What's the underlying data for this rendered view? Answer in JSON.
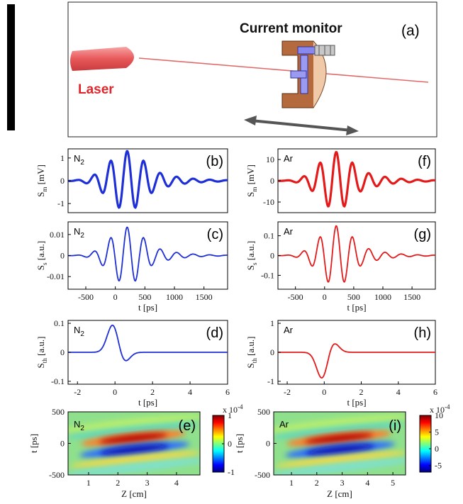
{
  "panel_a": {
    "label": "(a)",
    "current_monitor": "Current monitor",
    "laser": "Laser"
  },
  "chart_data": [
    {
      "id": "b",
      "type": "line",
      "panel_label": "(b)",
      "annotation": "N",
      "annotation_sub": "2",
      "ylabel_main": "S",
      "ylabel_sub": "m",
      "ylabel_unit": "[mV]",
      "color": "#1f2fd8",
      "marker": "circle",
      "xlim": [
        -800,
        1900
      ],
      "ylim": [
        -1.4,
        1.4
      ],
      "xticks": [],
      "yticks": [
        1,
        0,
        -1
      ],
      "wave": {
        "center": 200,
        "amp": 1.3,
        "sigma": 130,
        "period": 280,
        "decay": 420,
        "polarity": 1
      }
    },
    {
      "id": "c",
      "type": "line",
      "panel_label": "(c)",
      "annotation": "N",
      "annotation_sub": "2",
      "ylabel_main": "S",
      "ylabel_sub": "s",
      "ylabel_unit": "[a.u.]",
      "color": "#1f2fd8",
      "marker": "none",
      "xlim": [
        -800,
        1900
      ],
      "ylim": [
        -0.016,
        0.016
      ],
      "xticks": [
        -500,
        0,
        500,
        1000,
        1500
      ],
      "yticks": [
        0.01,
        0,
        -0.01
      ],
      "xlabel": "t [ps]",
      "wave": {
        "center": 200,
        "amp": 0.0135,
        "sigma": 120,
        "period": 280,
        "decay": 380,
        "polarity": 1
      }
    },
    {
      "id": "d",
      "type": "line",
      "panel_label": "(d)",
      "annotation": "N",
      "annotation_sub": "2",
      "ylabel_main": "S",
      "ylabel_sub": "th",
      "ylabel_unit": "[a.u.]",
      "color": "#1f2fd8",
      "marker": "none",
      "xlim": [
        -2.5,
        6
      ],
      "ylim": [
        -0.11,
        0.11
      ],
      "xticks": [
        -2,
        0,
        2,
        4,
        6
      ],
      "yticks": [
        0.1,
        0,
        -0.1
      ],
      "xlabel": "t [ps]",
      "pulse": {
        "pos_amp": 0.1,
        "pos_center": -0.1,
        "pos_sigma": 0.3,
        "neg_amp": -0.04,
        "neg_center": 0.45,
        "neg_sigma": 0.3
      }
    },
    {
      "id": "f",
      "type": "line",
      "panel_label": "(f)",
      "annotation": "Ar",
      "annotation_sub": "",
      "ylabel_main": "S",
      "ylabel_sub": "m",
      "ylabel_unit": "[mV]",
      "color": "#e41a1a",
      "marker": "circle",
      "xlim": [
        -800,
        1900
      ],
      "ylim": [
        -15,
        15
      ],
      "xticks": [],
      "yticks": [
        10,
        0,
        -10
      ],
      "wave": {
        "center": 200,
        "amp": 13.5,
        "sigma": 120,
        "period": 280,
        "decay": 420,
        "polarity": 1
      }
    },
    {
      "id": "g",
      "type": "line",
      "panel_label": "(g)",
      "annotation": "Ar",
      "annotation_sub": "",
      "ylabel_main": "S",
      "ylabel_sub": "s",
      "ylabel_unit": "[a.u.]",
      "color": "#e41a1a",
      "marker": "none",
      "xlim": [
        -800,
        1900
      ],
      "ylim": [
        -0.17,
        0.17
      ],
      "xticks": [
        -500,
        0,
        500,
        1000,
        1500
      ],
      "yticks": [
        0.1,
        0,
        -0.1
      ],
      "xlabel": "t [ps]",
      "wave": {
        "center": 200,
        "amp": 0.15,
        "sigma": 120,
        "period": 280,
        "decay": 380,
        "polarity": 1
      }
    },
    {
      "id": "h",
      "type": "line",
      "panel_label": "(h)",
      "annotation": "Ar",
      "annotation_sub": "",
      "ylabel_main": "S",
      "ylabel_sub": "th",
      "ylabel_unit": "[a.u.]",
      "color": "#e41a1a",
      "marker": "none",
      "xlim": [
        -2.5,
        6
      ],
      "ylim": [
        -1.1,
        1.1
      ],
      "xticks": [
        -2,
        0,
        2,
        4,
        6
      ],
      "yticks": [
        1,
        0,
        -1
      ],
      "xlabel": "t [ps]",
      "pulse": {
        "pos_amp": -0.95,
        "pos_center": -0.1,
        "pos_sigma": 0.3,
        "neg_amp": 0.4,
        "neg_center": 0.45,
        "neg_sigma": 0.3
      }
    },
    {
      "id": "e",
      "type": "heatmap",
      "panel_label": "(e)",
      "annotation": "N",
      "annotation_sub": "2",
      "xlabel": "Z [cm]",
      "ylabel": "t [ps]",
      "xlim": [
        0.3,
        4.8
      ],
      "ylim": [
        -500,
        500
      ],
      "xticks": [
        1,
        2,
        3,
        4
      ],
      "yticks": [
        500,
        0,
        -500
      ],
      "colorbar_ticks": [
        1,
        0,
        -1
      ],
      "colorbar_exponent": "x 10",
      "colorbar_exponent_power": "-4",
      "clim": [
        -1,
        1
      ]
    },
    {
      "id": "i",
      "type": "heatmap",
      "panel_label": "(i)",
      "annotation": "Ar",
      "annotation_sub": "",
      "xlabel": "Z [cm]",
      "ylabel": "t [ps]",
      "xlim": [
        0.3,
        5.5
      ],
      "ylim": [
        -500,
        500
      ],
      "xticks": [
        1,
        2,
        3,
        4,
        5
      ],
      "yticks": [
        500,
        0,
        -500
      ],
      "colorbar_ticks": [
        10,
        5,
        0,
        -5
      ],
      "colorbar_exponent": "x 10",
      "colorbar_exponent_power": "-4",
      "clim": [
        -7,
        10
      ]
    }
  ]
}
